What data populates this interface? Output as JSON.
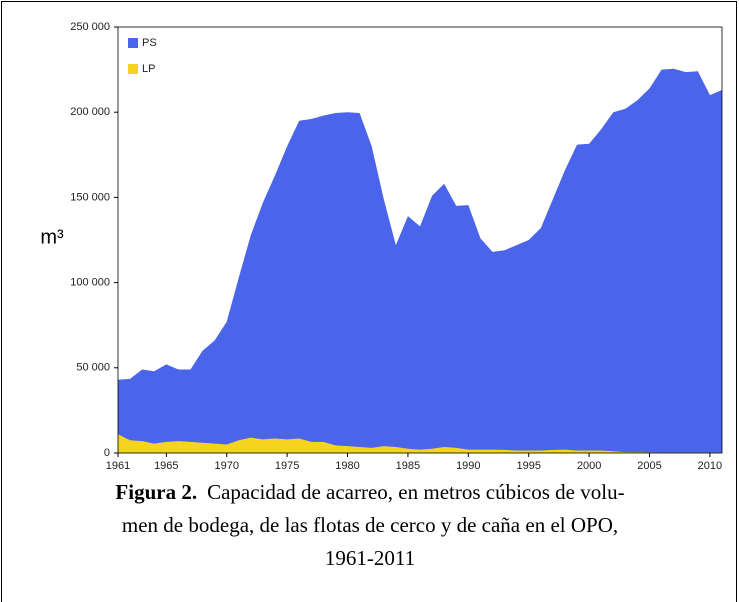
{
  "chart_data": {
    "type": "area",
    "ylabel": "m³",
    "x": [
      1961,
      1962,
      1963,
      1964,
      1965,
      1966,
      1967,
      1968,
      1969,
      1970,
      1971,
      1972,
      1973,
      1974,
      1975,
      1976,
      1977,
      1978,
      1979,
      1980,
      1981,
      1982,
      1983,
      1984,
      1985,
      1986,
      1987,
      1988,
      1989,
      1990,
      1991,
      1992,
      1993,
      1994,
      1995,
      1996,
      1997,
      1998,
      1999,
      2000,
      2001,
      2002,
      2003,
      2004,
      2005,
      2006,
      2007,
      2008,
      2009,
      2010,
      2011
    ],
    "series": [
      {
        "name": "PS",
        "color": "#4a64ea",
        "values": [
          43000,
          43500,
          49000,
          48000,
          52000,
          49000,
          49000,
          60000,
          66000,
          77000,
          103000,
          128000,
          147000,
          163000,
          180000,
          195000,
          196000,
          198000,
          199500,
          200000,
          199500,
          180000,
          149000,
          122000,
          139000,
          133000,
          151000,
          158000,
          145000,
          145500,
          126000,
          118000,
          119000,
          122000,
          125000,
          132000,
          149000,
          166000,
          181000,
          181500,
          190000,
          200000,
          202000,
          207000,
          214000,
          225000,
          225500,
          223500,
          224000,
          210000,
          213000
        ]
      },
      {
        "name": "LP",
        "color": "#f4d41e",
        "values": [
          11000,
          7500,
          7000,
          5500,
          6500,
          7000,
          6500,
          6000,
          5500,
          5000,
          7500,
          9000,
          8000,
          8500,
          8000,
          8500,
          6500,
          6500,
          4500,
          4000,
          3500,
          3000,
          4000,
          3500,
          2500,
          2000,
          2500,
          3500,
          3000,
          2000,
          2000,
          2000,
          1800,
          1500,
          1500,
          1500,
          1800,
          2000,
          1500,
          1500,
          1500,
          1000,
          500,
          500,
          400,
          300,
          300,
          300,
          300,
          300,
          300
        ]
      }
    ],
    "xlim": [
      1961,
      2011
    ],
    "xticks": [
      1961,
      1965,
      1970,
      1975,
      1980,
      1985,
      1990,
      1995,
      2000,
      2005,
      2010
    ],
    "ylim": [
      0,
      250000
    ],
    "yticks": [
      0,
      {
        "value": 50000,
        "label": "50 000"
      },
      {
        "value": 100000,
        "label": "100 000"
      },
      {
        "value": 150000,
        "label": "150 000"
      },
      {
        "value": 200000,
        "label": "200 000"
      },
      {
        "value": 250000,
        "label": "250 000"
      }
    ],
    "legend": "top-left",
    "caption": {
      "label": "Figura 2.",
      "lines": [
        "Capacidad de acarreo, en metros cúbicos de volu-",
        "men de bodega, de las flotas de cerco y de caña en el OPO,",
        "1961-2011"
      ]
    }
  }
}
